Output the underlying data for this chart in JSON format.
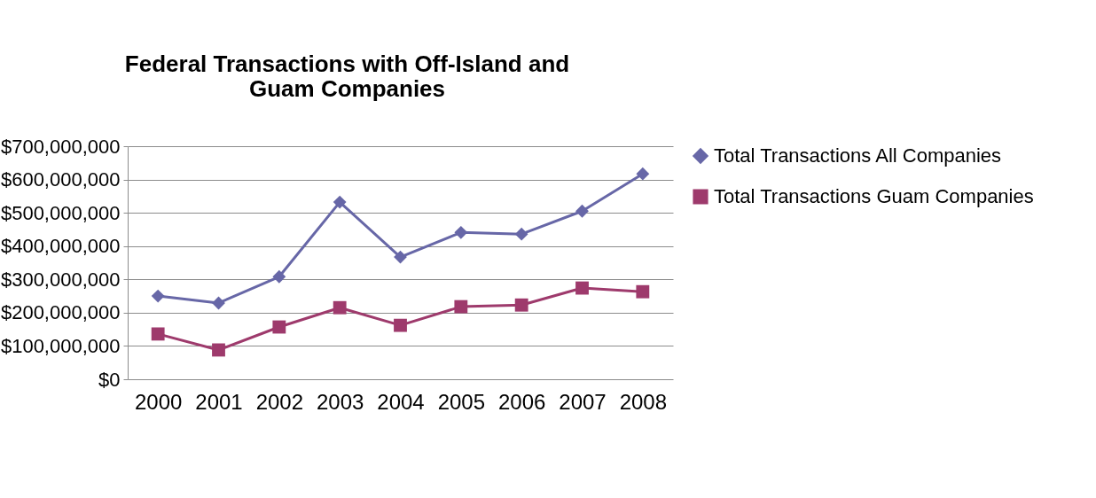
{
  "chart_data": {
    "type": "line",
    "title": "Federal Transactions with Off-Island and Guam Companies",
    "categories": [
      "2000",
      "2001",
      "2002",
      "2003",
      "2004",
      "2005",
      "2006",
      "2007",
      "2008"
    ],
    "series": [
      {
        "name": "Total Transactions All Companies",
        "color": "#6767a7",
        "marker": "diamond",
        "values": [
          250000000,
          229000000,
          308000000,
          532000000,
          367000000,
          441000000,
          436000000,
          505000000,
          617000000
        ]
      },
      {
        "name": "Total Transactions Guam Companies",
        "color": "#9e3a6c",
        "marker": "square",
        "values": [
          136000000,
          88000000,
          157000000,
          215000000,
          162000000,
          218000000,
          223000000,
          274000000,
          263000000
        ]
      }
    ],
    "ylim": [
      0,
      700000000
    ],
    "yticks": [
      {
        "value": 0,
        "label": "$0"
      },
      {
        "value": 100000000,
        "label": "$100,000,000"
      },
      {
        "value": 200000000,
        "label": "$200,000,000"
      },
      {
        "value": 300000000,
        "label": "$300,000,000"
      },
      {
        "value": 400000000,
        "label": "$400,000,000"
      },
      {
        "value": 500000000,
        "label": "$500,000,000"
      },
      {
        "value": 600000000,
        "label": "$600,000,000"
      },
      {
        "value": 700000000,
        "label": "$700,000,000"
      }
    ],
    "grid": "y",
    "legend": "right",
    "line_style": "solid"
  }
}
